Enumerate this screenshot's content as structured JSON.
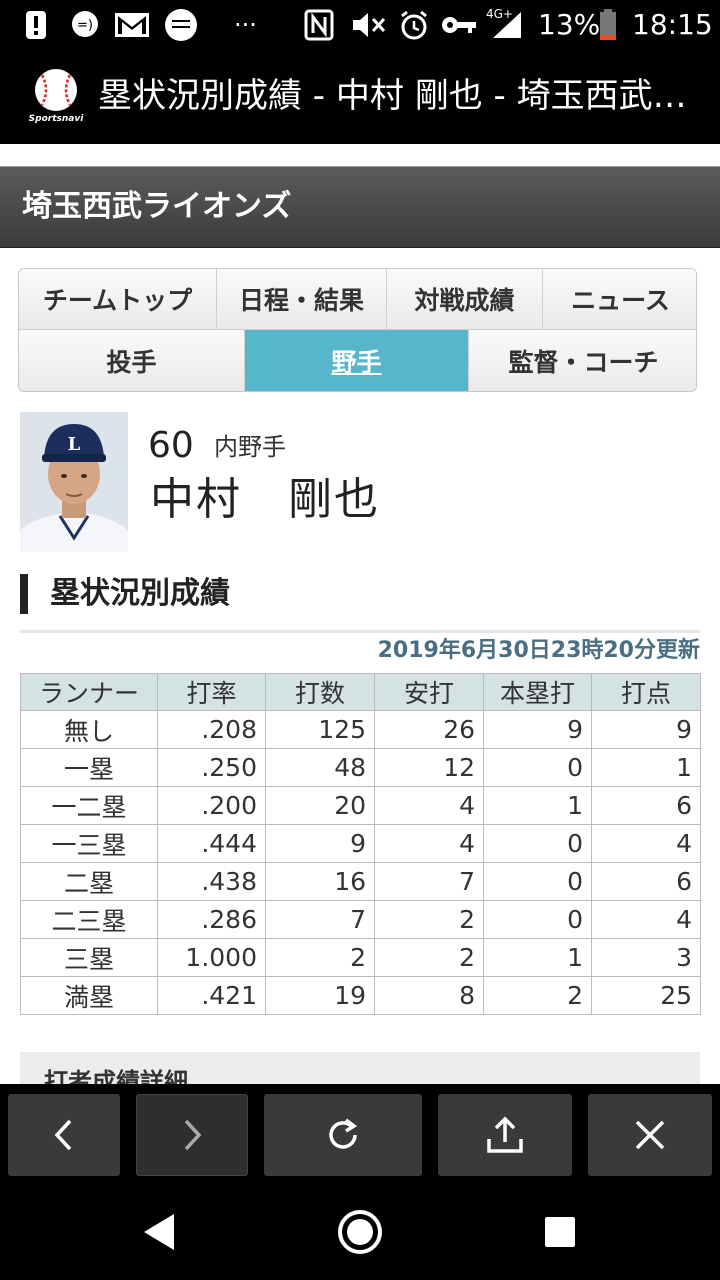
{
  "status_bar": {
    "network": "4G+",
    "battery": "13%",
    "time": "18:15",
    "icons": [
      "alert-icon",
      "messenger-icon",
      "gmail-icon",
      "app-icon",
      "more-dots-icon",
      "nfc-icon",
      "mute-icon",
      "alarm-icon",
      "key-icon",
      "signal-icon",
      "battery-icon"
    ]
  },
  "browser": {
    "page_title": "塁状況別成績 - 中村 剛也 - 埼玉西武…",
    "logo_text": "Sportsnavi"
  },
  "team": {
    "name": "埼玉西武ライオンズ"
  },
  "nav": {
    "row1": [
      "チームトップ",
      "日程・結果",
      "対戦成績",
      "ニュース"
    ],
    "row2": [
      "投手",
      "野手",
      "監督・コーチ"
    ],
    "active": "野手"
  },
  "player": {
    "number": "60",
    "position": "内野手",
    "name": "中村　剛也"
  },
  "section": {
    "title": "塁状況別成績",
    "updated": "2019年6月30日23時20分更新"
  },
  "table": {
    "headers": [
      "ランナー",
      "打率",
      "打数",
      "安打",
      "本塁打",
      "打点"
    ],
    "rows": [
      [
        "無し",
        ".208",
        "125",
        "26",
        "9",
        "9"
      ],
      [
        "一塁",
        ".250",
        "48",
        "12",
        "0",
        "1"
      ],
      [
        "一二塁",
        ".200",
        "20",
        "4",
        "1",
        "6"
      ],
      [
        "一三塁",
        ".444",
        "9",
        "4",
        "0",
        "4"
      ],
      [
        "二塁",
        ".438",
        "16",
        "7",
        "0",
        "6"
      ],
      [
        "二三塁",
        ".286",
        "7",
        "2",
        "0",
        "4"
      ],
      [
        "三塁",
        "1.000",
        "2",
        "2",
        "1",
        "3"
      ],
      [
        "満塁",
        ".421",
        "19",
        "8",
        "2",
        "25"
      ]
    ]
  },
  "next_section": {
    "title": "打者成績詳細"
  },
  "toolbar": {
    "buttons": [
      "back-icon",
      "forward-icon",
      "reload-icon",
      "share-icon",
      "close-icon"
    ]
  },
  "android_nav": {
    "buttons": [
      "back-triangle-icon",
      "home-circle-icon",
      "recents-square-icon"
    ]
  },
  "colors": {
    "active_tab": "#56b6cb",
    "table_header": "#d4e2e4",
    "updated_text": "#4a6e84"
  }
}
